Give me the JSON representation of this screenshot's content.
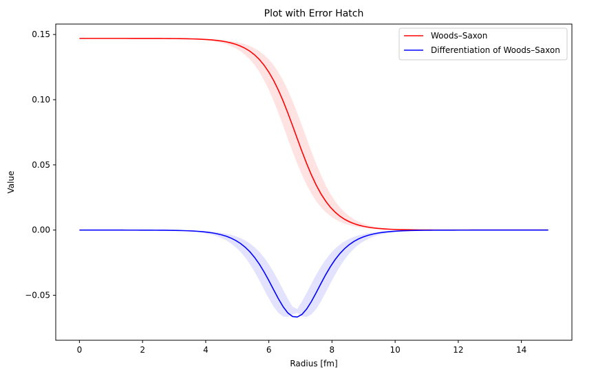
{
  "chart_data": {
    "type": "line",
    "title": "Plot with Error Hatch",
    "xlabel": "Radius [fm]",
    "ylabel": "Value",
    "xlim": [
      -0.75,
      15.6
    ],
    "ylim": [
      -0.0845,
      0.158
    ],
    "xticks": [
      0,
      2,
      4,
      6,
      8,
      10,
      12,
      14
    ],
    "yticks": [
      -0.05,
      0.0,
      0.05,
      0.1,
      0.15
    ],
    "ytick_labels": [
      "−0.05",
      "0.00",
      "0.05",
      "0.10",
      "0.15"
    ],
    "grid": false,
    "legend_placement": "top-right",
    "series": [
      {
        "name": "Woods–Saxon",
        "color": "#ff0000",
        "band_color": "#ffcccc",
        "model": "woods_saxon",
        "rho0": 0.147,
        "R": 6.85,
        "a": 0.55,
        "band_halfwidth_R": 0.3
      },
      {
        "name": "Differentiation of Woods–Saxon",
        "color": "#0000ff",
        "band_color": "#ccccff",
        "model": "woods_saxon_derivative",
        "rho0": 0.147,
        "R": 6.85,
        "a": 0.55,
        "band_halfwidth_R": 0.3
      }
    ],
    "x_range": [
      0,
      14.85
    ]
  }
}
